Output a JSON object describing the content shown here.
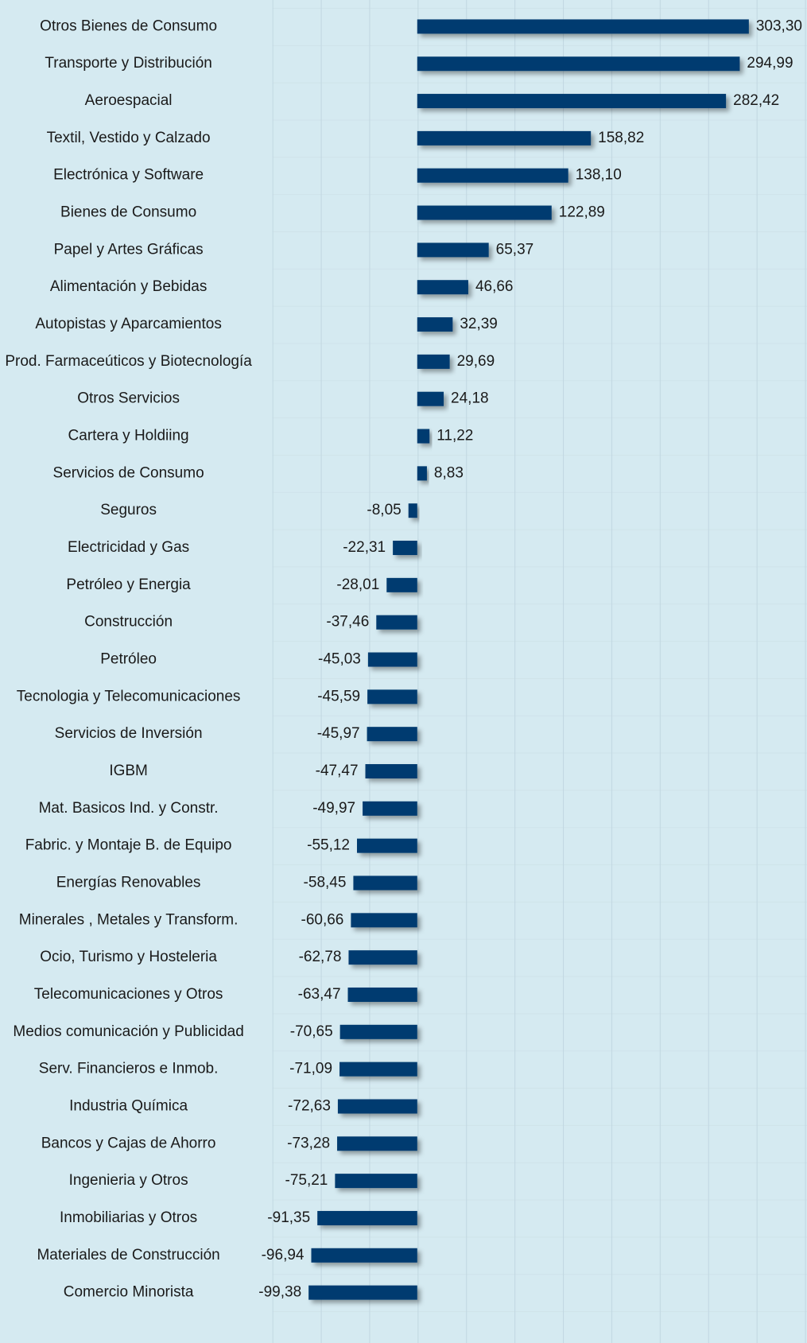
{
  "chart_data": {
    "type": "bar",
    "orientation": "horizontal",
    "color": "#003b6f",
    "categories": [
      "Otros Bienes de Consumo",
      "Transporte y Distribución",
      "Aeroespacial",
      "Textil, Vestido y Calzado",
      "Electrónica y Software",
      "Bienes de Consumo",
      "Papel y Artes Gráficas",
      "Alimentación y Bebidas",
      "Autopistas y Aparcamientos",
      "Prod. Farmaceúticos y Biotecnología",
      "Otros Servicios",
      "Cartera y Holdiing",
      "Servicios de Consumo",
      "Seguros",
      "Electricidad y Gas",
      "Petróleo y Energia",
      "Construcción",
      "Petróleo",
      "Tecnologia y Telecomunicaciones",
      "Servicios de Inversión",
      "IGBM",
      "Mat. Basicos Ind. y Constr.",
      "Fabric. y Montaje B. de Equipo",
      "Energías Renovables",
      "Minerales , Metales  y Transform.",
      "Ocio, Turismo y Hosteleria",
      "Telecomunicaciones y Otros",
      "Medios comunicación y Publicidad",
      "Serv. Financieros e Inmob.",
      "Industria Química",
      "Bancos y Cajas de Ahorro",
      "Ingenieria y Otros",
      "Inmobiliarias y Otros",
      "Materiales de Construcción",
      "Comercio Minorista"
    ],
    "values": [
      303.3,
      294.99,
      282.42,
      158.82,
      138.1,
      122.89,
      65.37,
      46.66,
      32.39,
      29.69,
      24.18,
      11.22,
      8.83,
      -8.05,
      -22.31,
      -28.01,
      -37.46,
      -45.03,
      -45.59,
      -45.97,
      -47.47,
      -49.97,
      -55.12,
      -58.45,
      -60.66,
      -62.78,
      -63.47,
      -70.65,
      -71.09,
      -72.63,
      -73.28,
      -75.21,
      -91.35,
      -96.94,
      -99.38
    ],
    "value_labels": [
      "303,30",
      "294,99",
      "282,42",
      "158,82",
      "138,10",
      "122,89",
      "65,37",
      "46,66",
      "32,39",
      "29,69",
      "24,18",
      "11,22",
      "8,83",
      "-8,05",
      "-22,31",
      "-28,01",
      "-37,46",
      "-45,03",
      "-45,59",
      "-45,97",
      "-47,47",
      "-49,97",
      "-55,12",
      "-58,45",
      "-60,66",
      "-62,78",
      "-63,47",
      "-70,65",
      "-71,09",
      "-72,63",
      "-73,28",
      "-75,21",
      "-91,35",
      "-96,94",
      "-99,38"
    ],
    "xlim": [
      -132.5,
      356.5
    ]
  }
}
